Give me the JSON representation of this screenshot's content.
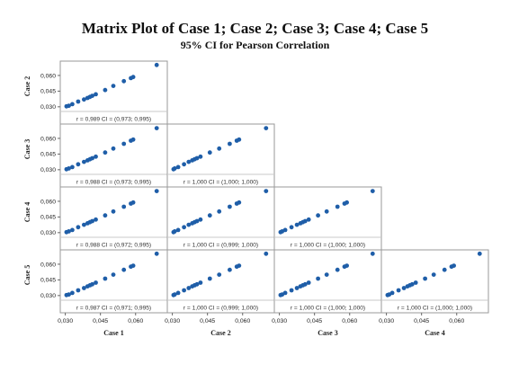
{
  "title": "Matrix Plot of Case 1; Case 2; Case 3; Case 4; Case 5",
  "subtitle": "95% CI for Pearson Correlation",
  "chart_data": {
    "type": "scatter",
    "variables": [
      "Case 1",
      "Case 2",
      "Case 3",
      "Case 4",
      "Case 5"
    ],
    "axis_range": [
      0.029,
      0.072
    ],
    "tick_values": [
      0.03,
      0.045,
      0.06
    ],
    "tick_labels": [
      "0,030",
      "0,045",
      "0,060"
    ],
    "x_tick_labels_case4": [
      "0,030",
      "0,045",
      "0,060"
    ],
    "grid": false,
    "marker_color": "#1f5ea8",
    "points": [
      [
        0.0305,
        0.0305,
        0.0305,
        0.0305,
        0.0305
      ],
      [
        0.0315,
        0.031,
        0.0312,
        0.0312,
        0.031
      ],
      [
        0.033,
        0.0325,
        0.0325,
        0.0325,
        0.0325
      ],
      [
        0.0355,
        0.035,
        0.0352,
        0.0352,
        0.035
      ],
      [
        0.038,
        0.037,
        0.0375,
        0.0375,
        0.0372
      ],
      [
        0.0395,
        0.0385,
        0.039,
        0.039,
        0.0388
      ],
      [
        0.0405,
        0.0395,
        0.04,
        0.04,
        0.0398
      ],
      [
        0.0415,
        0.0405,
        0.041,
        0.041,
        0.0408
      ],
      [
        0.043,
        0.042,
        0.0425,
        0.0425,
        0.0423
      ],
      [
        0.047,
        0.046,
        0.0465,
        0.0465,
        0.0462
      ],
      [
        0.0505,
        0.05,
        0.0502,
        0.0502,
        0.05
      ],
      [
        0.055,
        0.0545,
        0.0548,
        0.0548,
        0.0546
      ],
      [
        0.058,
        0.0575,
        0.0578,
        0.0578,
        0.0576
      ],
      [
        0.059,
        0.0585,
        0.0588,
        0.0588,
        0.0586
      ],
      [
        0.069,
        0.07,
        0.0698,
        0.0698,
        0.07
      ]
    ],
    "panels": [
      {
        "row": 0,
        "col": 0,
        "label": "r = 0,989  CI = (0,973; 0,995)"
      },
      {
        "row": 1,
        "col": 0,
        "label": "r = 0,988  CI = (0,973; 0,995)"
      },
      {
        "row": 1,
        "col": 1,
        "label": "r = 1,000  CI = (1,000; 1,000)"
      },
      {
        "row": 2,
        "col": 0,
        "label": "r = 0,988  CI = (0,972; 0,995)"
      },
      {
        "row": 2,
        "col": 1,
        "label": "r = 1,000  CI = (0,999; 1,000)"
      },
      {
        "row": 2,
        "col": 2,
        "label": "r = 1,000  CI = (1,000; 1,000)"
      },
      {
        "row": 3,
        "col": 0,
        "label": "r = 0,987  CI = (0,971; 0,995)"
      },
      {
        "row": 3,
        "col": 1,
        "label": "r = 1,000  CI = (0,999; 1,000)"
      },
      {
        "row": 3,
        "col": 2,
        "label": "r = 1,000  CI = (1,000; 1,000)"
      },
      {
        "row": 3,
        "col": 3,
        "label": "r = 1,000  CI = (1,000; 1,000)"
      }
    ],
    "row_labels": [
      "Case 2",
      "Case 3",
      "Case 4",
      "Case 5"
    ],
    "col_labels": [
      "Case 1",
      "Case 2",
      "Case 3",
      "Case 4"
    ]
  }
}
